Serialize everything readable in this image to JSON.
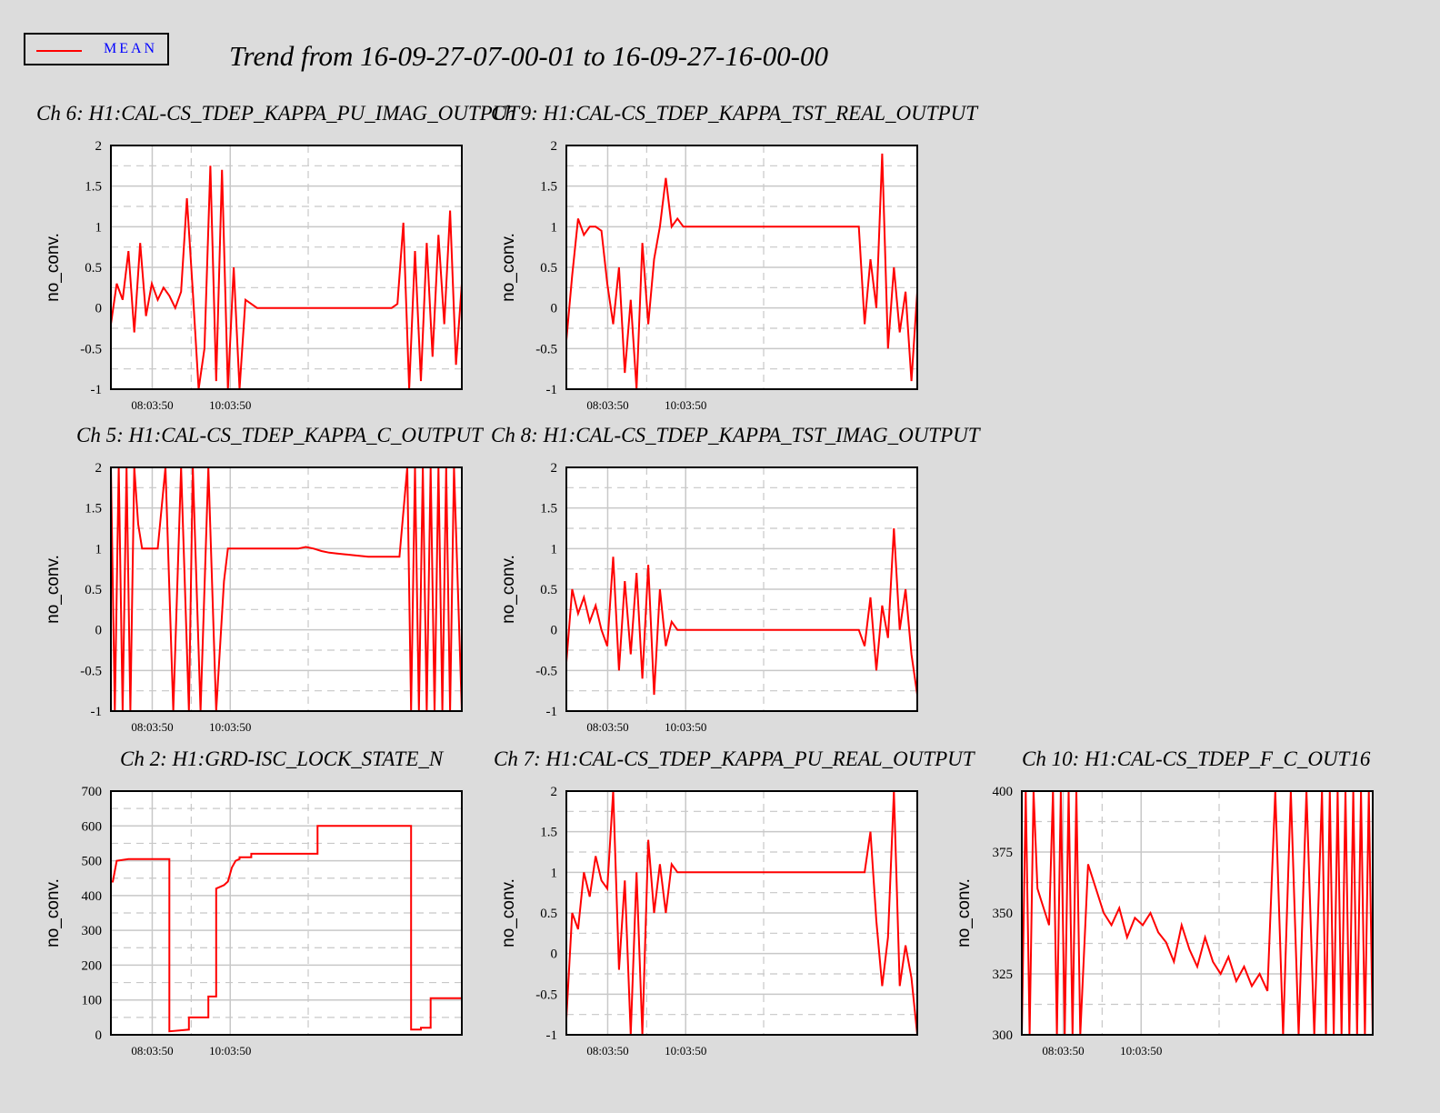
{
  "title": "Trend from 16-09-27-07-00-01 to 16-09-27-16-00-00",
  "legend": {
    "label": "MEAN",
    "color": "#ff0000"
  },
  "colors": {
    "background": "#dcdcdc",
    "plot_bg": "#ffffff",
    "series": "#ff0000",
    "grid": "#c8c8c8"
  },
  "chart_data": [
    {
      "type": "line",
      "title": "Ch 6: H1:CAL-CS_TDEP_KAPPA_PU_IMAG_OUTPUT",
      "ylabel": "no_conv.",
      "ylim": [
        -1,
        2
      ],
      "yticks": [
        "2",
        "1.5",
        "1",
        "0.5",
        "0",
        "-0.5",
        "-1"
      ],
      "xtick_labels": [
        "08:03:50",
        "10:03:50"
      ],
      "series": [
        {
          "x": [
            0,
            0.15,
            0.3,
            0.45,
            0.6,
            0.75,
            0.9,
            1.05,
            1.2,
            1.35,
            1.5,
            1.65,
            1.8,
            1.95,
            2.1,
            2.25,
            2.4,
            2.55,
            2.7,
            2.85,
            3.0,
            3.15,
            3.3,
            3.45,
            3.6,
            3.75,
            3.9,
            4.05,
            4.2,
            4.35,
            4.5,
            4.65,
            4.8,
            4.95,
            5.1,
            5.25,
            5.4,
            5.55,
            5.7,
            5.85,
            6.0,
            6.15,
            6.3,
            6.45,
            6.6,
            6.75,
            6.9,
            7.05,
            7.2,
            7.35,
            7.5,
            7.65,
            7.8,
            7.95,
            8.1,
            8.25,
            8.4,
            8.55,
            8.7,
            8.85,
            9.0
          ],
          "values": [
            -0.2,
            0.3,
            0.1,
            0.7,
            -0.3,
            0.8,
            -0.1,
            0.3,
            0.1,
            0.25,
            0.15,
            0,
            0.2,
            1.35,
            0.2,
            -1,
            -0.5,
            1.75,
            -0.9,
            1.7,
            -1,
            0.5,
            -1,
            0.1,
            0.05,
            0,
            0,
            0,
            0,
            0,
            0,
            0,
            0,
            0,
            0,
            0,
            0,
            0,
            0,
            0,
            0,
            0,
            0,
            0,
            0,
            0,
            0,
            0,
            0,
            0.05,
            1.05,
            -1,
            0.7,
            -0.9,
            0.8,
            -0.6,
            0.9,
            -0.2,
            1.2,
            -0.7,
            0.3
          ]
        }
      ]
    },
    {
      "type": "line",
      "title": "Ch 9: H1:CAL-CS_TDEP_KAPPA_TST_REAL_OUTPUT",
      "ylabel": "no_conv.",
      "ylim": [
        -1,
        2
      ],
      "yticks": [
        "2",
        "1.5",
        "1",
        "0.5",
        "0",
        "-0.5",
        "-1"
      ],
      "xtick_labels": [
        "08:03:50",
        "10:03:50"
      ],
      "series": [
        {
          "x": [
            0,
            0.15,
            0.3,
            0.45,
            0.6,
            0.75,
            0.9,
            1.05,
            1.2,
            1.35,
            1.5,
            1.65,
            1.8,
            1.95,
            2.1,
            2.25,
            2.4,
            2.55,
            2.7,
            2.85,
            3.0,
            3.15,
            3.3,
            3.45,
            3.6,
            3.75,
            3.9,
            4.05,
            4.2,
            4.35,
            4.5,
            4.65,
            4.8,
            4.95,
            5.1,
            5.25,
            5.4,
            5.55,
            5.7,
            5.85,
            6.0,
            6.15,
            6.3,
            6.45,
            6.6,
            6.75,
            6.9,
            7.05,
            7.2,
            7.35,
            7.5,
            7.65,
            7.8,
            7.95,
            8.1,
            8.25,
            8.4,
            8.55,
            8.7,
            8.85,
            9.0
          ],
          "values": [
            -0.4,
            0.4,
            1.1,
            0.9,
            1.0,
            1.0,
            0.95,
            0.3,
            -0.2,
            0.5,
            -0.8,
            0.1,
            -1,
            0.8,
            -0.2,
            0.6,
            1.0,
            1.6,
            1.0,
            1.1,
            1.0,
            1.0,
            1.0,
            1.0,
            1.0,
            1.0,
            1.0,
            1.0,
            1.0,
            1.0,
            1.0,
            1.0,
            1.0,
            1.0,
            1.0,
            1.0,
            1.0,
            1.0,
            1.0,
            1.0,
            1.0,
            1.0,
            1.0,
            1.0,
            1.0,
            1.0,
            1.0,
            1.0,
            1.0,
            1.0,
            1.0,
            -0.2,
            0.6,
            0,
            1.9,
            -0.5,
            0.5,
            -0.3,
            0.2,
            -0.9,
            0.2
          ]
        }
      ]
    },
    {
      "type": "line",
      "title": "Ch 5: H1:CAL-CS_TDEP_KAPPA_C_OUTPUT",
      "ylabel": "no_conv.",
      "ylim": [
        -1,
        2
      ],
      "yticks": [
        "2",
        "1.5",
        "1",
        "0.5",
        "0",
        "-0.5",
        "-1"
      ],
      "xtick_labels": [
        "08:03:50",
        "10:03:50"
      ],
      "series": [
        {
          "x": [
            0,
            0.1,
            0.2,
            0.3,
            0.4,
            0.5,
            0.6,
            0.7,
            0.8,
            0.9,
            1.0,
            1.2,
            1.4,
            1.6,
            1.8,
            2.0,
            2.1,
            2.3,
            2.5,
            2.7,
            2.9,
            3.0,
            3.2,
            3.4,
            3.6,
            3.8,
            4.0,
            4.2,
            4.4,
            4.6,
            4.8,
            5.0,
            5.2,
            5.4,
            5.6,
            5.8,
            6.0,
            6.2,
            6.4,
            6.6,
            6.8,
            7.0,
            7.2,
            7.4,
            7.6,
            7.7,
            7.8,
            7.9,
            8.0,
            8.1,
            8.2,
            8.3,
            8.4,
            8.5,
            8.6,
            8.7,
            8.8,
            9.0
          ],
          "values": [
            2,
            -1,
            2,
            -1,
            2,
            -1,
            2,
            1.3,
            1.0,
            1.0,
            1.0,
            1.0,
            2,
            -1,
            2,
            -1,
            2,
            -1,
            2,
            -1,
            0.6,
            1.0,
            1.0,
            1.0,
            1.0,
            1.0,
            1.0,
            1.0,
            1.0,
            1.0,
            1.0,
            1.02,
            1.0,
            0.97,
            0.95,
            0.94,
            0.93,
            0.92,
            0.91,
            0.9,
            0.9,
            0.9,
            0.9,
            0.9,
            2,
            -1,
            2,
            -1,
            2,
            -1,
            2,
            -1,
            2,
            -1,
            2,
            -1,
            2,
            -1
          ]
        }
      ]
    },
    {
      "type": "line",
      "title": "Ch 8: H1:CAL-CS_TDEP_KAPPA_TST_IMAG_OUTPUT",
      "ylabel": "no_conv.",
      "ylim": [
        -1,
        2
      ],
      "yticks": [
        "2",
        "1.5",
        "1",
        "0.5",
        "0",
        "-0.5",
        "-1"
      ],
      "xtick_labels": [
        "08:03:50",
        "10:03:50"
      ],
      "series": [
        {
          "x": [
            0,
            0.15,
            0.3,
            0.45,
            0.6,
            0.75,
            0.9,
            1.05,
            1.2,
            1.35,
            1.5,
            1.65,
            1.8,
            1.95,
            2.1,
            2.25,
            2.4,
            2.55,
            2.7,
            2.85,
            3.0,
            3.15,
            3.3,
            3.45,
            3.6,
            3.75,
            3.9,
            4.05,
            4.2,
            4.35,
            4.5,
            4.65,
            4.8,
            4.95,
            5.1,
            5.25,
            5.4,
            5.55,
            5.7,
            5.85,
            6.0,
            6.15,
            6.3,
            6.45,
            6.6,
            6.75,
            6.9,
            7.05,
            7.2,
            7.35,
            7.5,
            7.65,
            7.8,
            7.95,
            8.1,
            8.25,
            8.4,
            8.55,
            8.7,
            8.85,
            9.0
          ],
          "values": [
            -0.4,
            0.5,
            0.2,
            0.4,
            0.1,
            0.3,
            0,
            -0.2,
            0.9,
            -0.5,
            0.6,
            -0.3,
            0.7,
            -0.6,
            0.8,
            -0.8,
            0.5,
            -0.2,
            0.1,
            0,
            0,
            0,
            0,
            0,
            0,
            0,
            0,
            0,
            0,
            0,
            0,
            0,
            0,
            0,
            0,
            0,
            0,
            0,
            0,
            0,
            0,
            0,
            0,
            0,
            0,
            0,
            0,
            0,
            0,
            0,
            0,
            -0.2,
            0.4,
            -0.5,
            0.3,
            -0.1,
            1.25,
            0,
            0.5,
            -0.3,
            -0.8
          ]
        }
      ]
    },
    {
      "type": "line",
      "title": "Ch 2: H1:GRD-ISC_LOCK_STATE_N",
      "ylabel": "no_conv.",
      "ylim": [
        0,
        700
      ],
      "yticks": [
        "700",
        "600",
        "500",
        "400",
        "300",
        "200",
        "100",
        "0"
      ],
      "xtick_labels": [
        "08:03:50",
        "10:03:50"
      ],
      "series": [
        {
          "x": [
            0,
            0.05,
            0.15,
            0.15,
            0.45,
            0.45,
            1.5,
            1.5,
            2.0,
            2.0,
            2.5,
            2.5,
            2.7,
            2.7,
            2.9,
            3.0,
            3.1,
            3.2,
            3.3,
            3.3,
            3.6,
            3.6,
            3.9,
            3.9,
            5.3,
            5.3,
            7.7,
            7.7,
            7.95,
            7.95,
            8.2,
            8.2,
            9.0
          ],
          "values": [
            440,
            440,
            500,
            500,
            505,
            505,
            505,
            10,
            15,
            50,
            50,
            110,
            110,
            420,
            430,
            440,
            480,
            500,
            505,
            510,
            510,
            520,
            520,
            520,
            520,
            600,
            600,
            15,
            15,
            20,
            20,
            105,
            105
          ]
        }
      ]
    },
    {
      "type": "line",
      "title": "Ch 7: H1:CAL-CS_TDEP_KAPPA_PU_REAL_OUTPUT",
      "ylabel": "no_conv.",
      "ylim": [
        -1,
        2
      ],
      "yticks": [
        "2",
        "1.5",
        "1",
        "0.5",
        "0",
        "-0.5",
        "-1"
      ],
      "xtick_labels": [
        "08:03:50",
        "10:03:50"
      ],
      "series": [
        {
          "x": [
            0,
            0.15,
            0.3,
            0.45,
            0.6,
            0.75,
            0.9,
            1.05,
            1.2,
            1.35,
            1.5,
            1.65,
            1.8,
            1.95,
            2.1,
            2.25,
            2.4,
            2.55,
            2.7,
            2.85,
            3.0,
            3.15,
            3.3,
            3.45,
            3.6,
            3.75,
            3.9,
            4.05,
            4.2,
            4.35,
            4.5,
            4.65,
            4.8,
            4.95,
            5.1,
            5.25,
            5.4,
            5.55,
            5.7,
            5.85,
            6.0,
            6.15,
            6.3,
            6.45,
            6.6,
            6.75,
            6.9,
            7.05,
            7.2,
            7.35,
            7.5,
            7.65,
            7.8,
            7.95,
            8.1,
            8.25,
            8.4,
            8.55,
            8.7,
            8.85,
            9.0
          ],
          "values": [
            -0.8,
            0.5,
            0.3,
            1.0,
            0.7,
            1.2,
            0.9,
            0.8,
            2,
            -0.2,
            0.9,
            -1,
            1.0,
            -1,
            1.4,
            0.5,
            1.1,
            0.5,
            1.1,
            1.0,
            1.0,
            1.0,
            1.0,
            1.0,
            1.0,
            1.0,
            1.0,
            1.0,
            1.0,
            1.0,
            1.0,
            1.0,
            1.0,
            1.0,
            1.0,
            1.0,
            1.0,
            1.0,
            1.0,
            1.0,
            1.0,
            1.0,
            1.0,
            1.0,
            1.0,
            1.0,
            1.0,
            1.0,
            1.0,
            1.0,
            1.0,
            1.0,
            1.5,
            0.4,
            -0.4,
            0.2,
            2,
            -0.4,
            0.1,
            -0.3,
            -1
          ]
        }
      ]
    },
    {
      "type": "line",
      "title": "Ch 10: H1:CAL-CS_TDEP_F_C_OUT16",
      "ylabel": "no_conv.",
      "ylim": [
        300,
        400
      ],
      "yticks": [
        "400",
        "375",
        "350",
        "325",
        "300"
      ],
      "xtick_labels": [
        "08:03:50",
        "10:03:50"
      ],
      "series": [
        {
          "x": [
            0,
            0.1,
            0.2,
            0.3,
            0.4,
            0.5,
            0.6,
            0.7,
            0.8,
            0.9,
            1.0,
            1.1,
            1.2,
            1.3,
            1.4,
            1.5,
            1.7,
            1.9,
            2.1,
            2.3,
            2.5,
            2.7,
            2.9,
            3.1,
            3.3,
            3.5,
            3.7,
            3.9,
            4.1,
            4.3,
            4.5,
            4.7,
            4.9,
            5.1,
            5.3,
            5.5,
            5.7,
            5.9,
            6.1,
            6.3,
            6.5,
            6.7,
            6.9,
            7.1,
            7.3,
            7.5,
            7.7,
            7.8,
            7.9,
            8.0,
            8.1,
            8.2,
            8.3,
            8.4,
            8.5,
            8.6,
            8.7,
            8.8,
            8.9,
            9.0
          ],
          "values": [
            300,
            400,
            300,
            400,
            360,
            355,
            350,
            345,
            400,
            300,
            400,
            300,
            400,
            300,
            400,
            300,
            370,
            360,
            350,
            345,
            352,
            340,
            348,
            345,
            350,
            342,
            338,
            330,
            345,
            335,
            328,
            340,
            330,
            325,
            332,
            322,
            328,
            320,
            325,
            318,
            400,
            300,
            400,
            300,
            400,
            300,
            400,
            300,
            400,
            300,
            400,
            300,
            400,
            300,
            400,
            300,
            400,
            300,
            400,
            300
          ]
        }
      ]
    }
  ]
}
